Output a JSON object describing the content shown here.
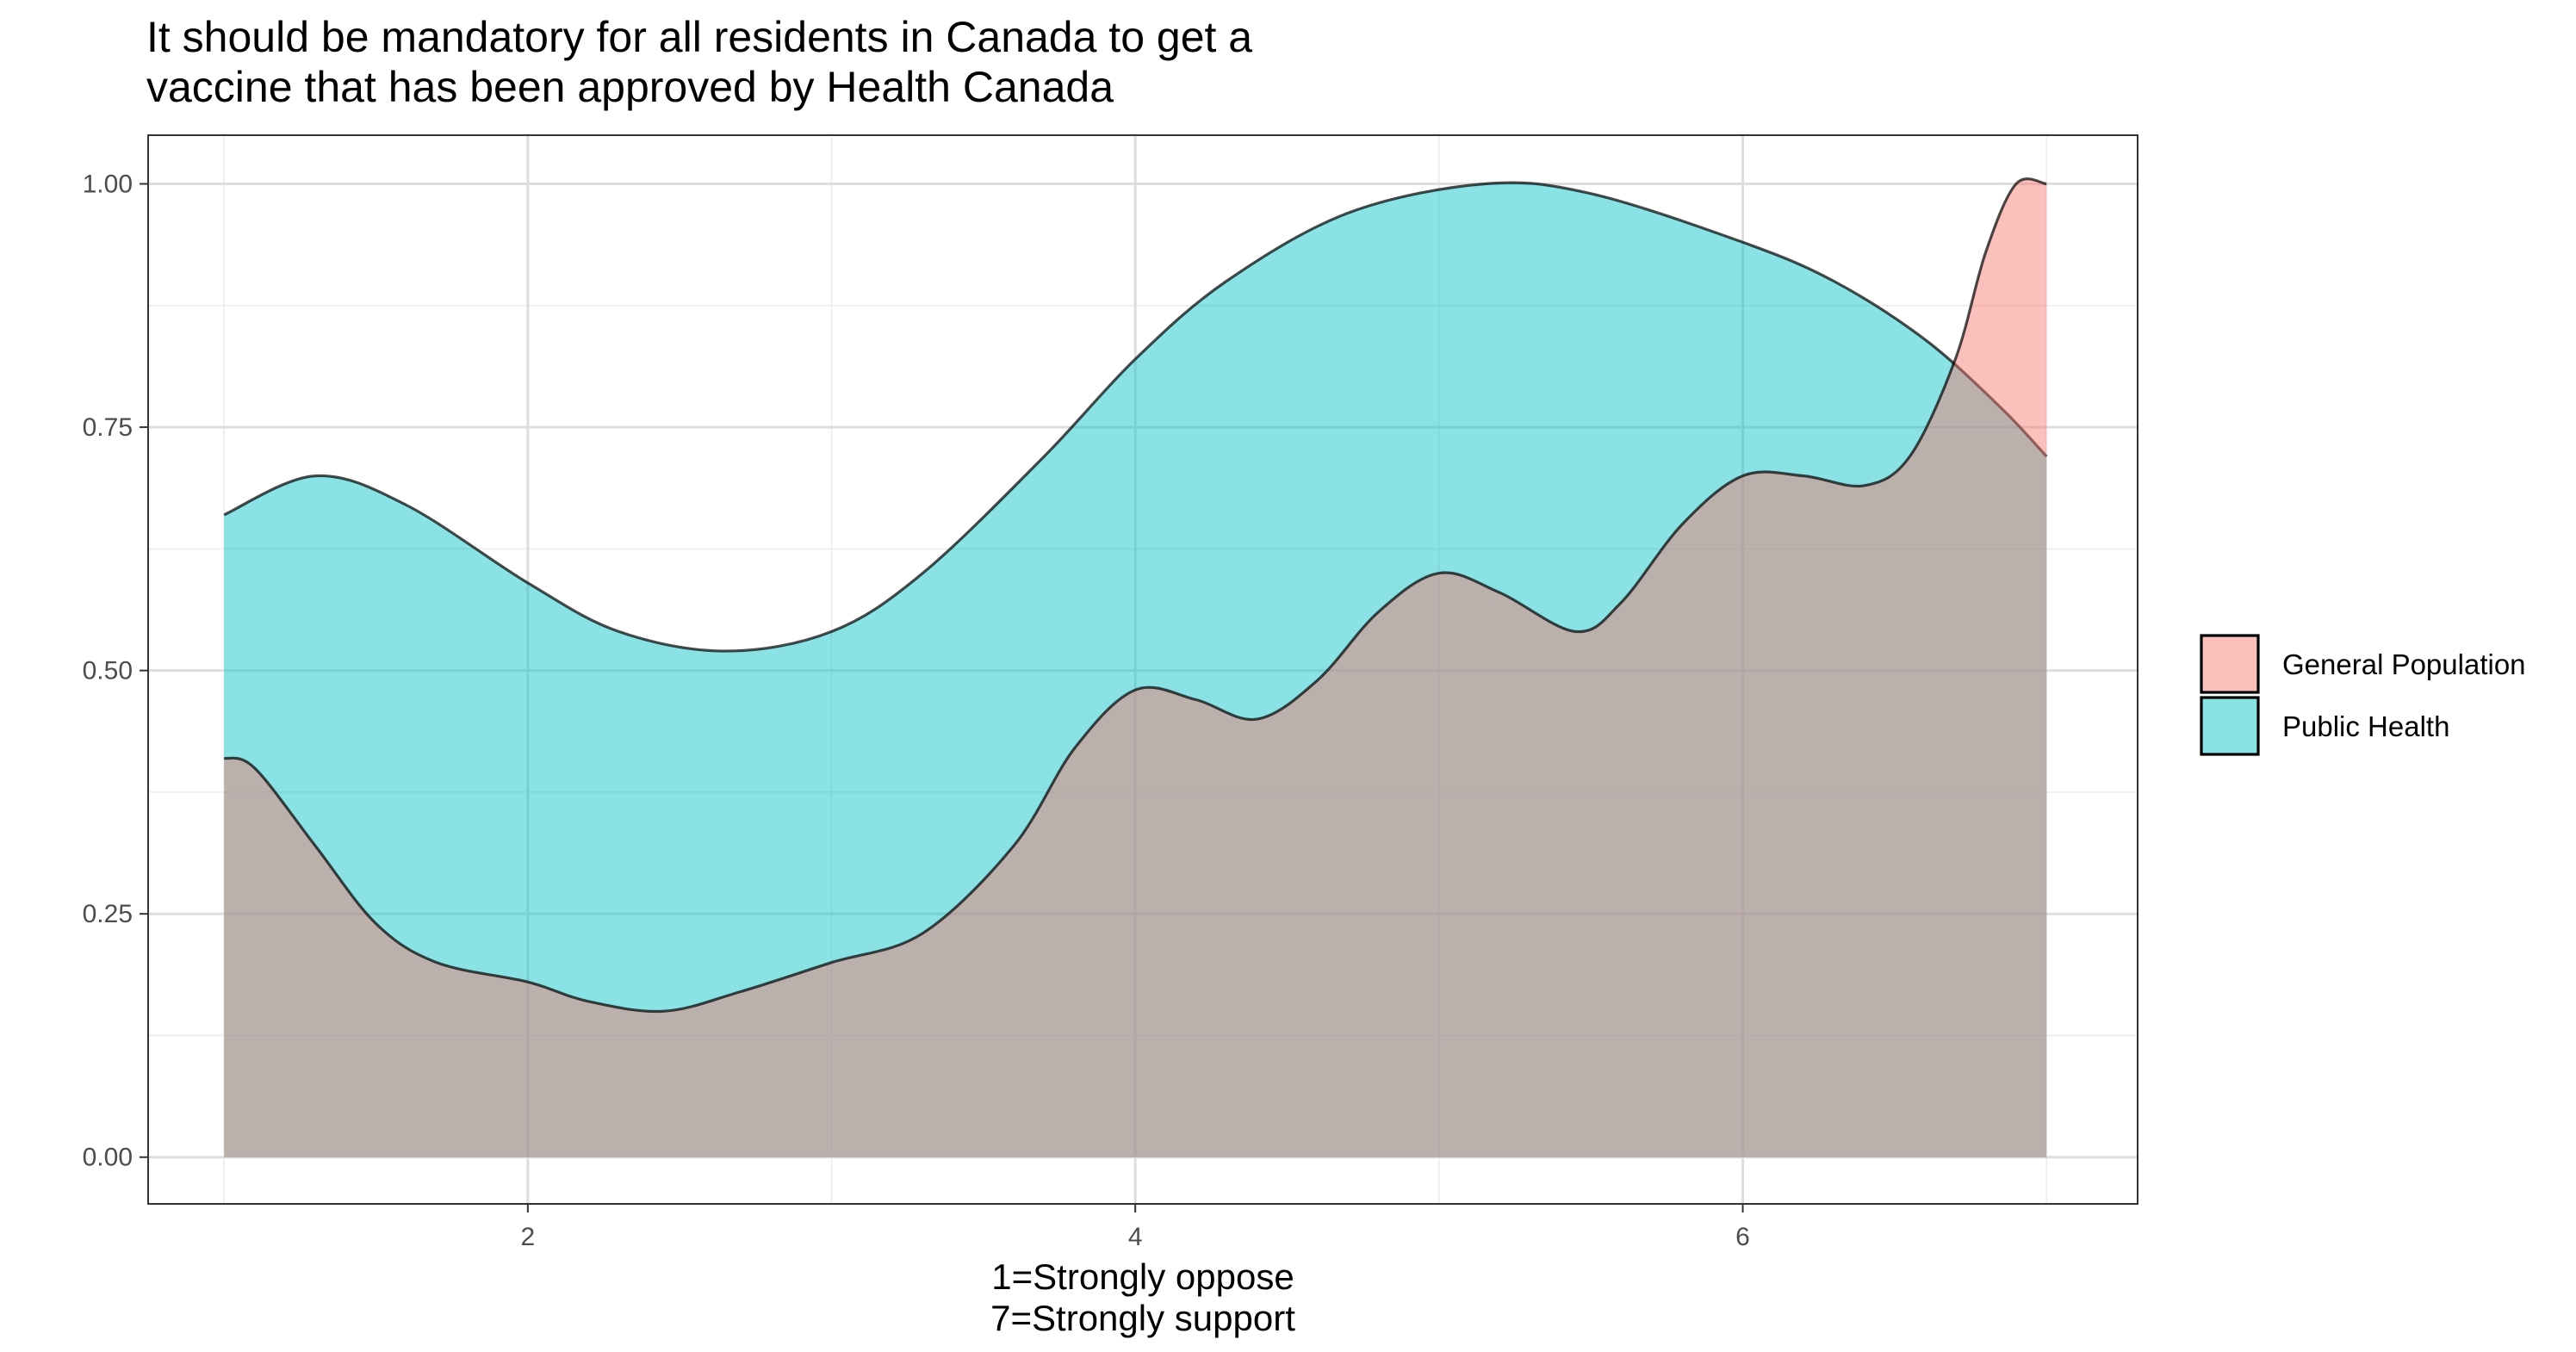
{
  "chart_data": {
    "type": "area",
    "title_lines": [
      "It should be mandatory for all residents in Canada to get a",
      "vaccine that has been approved by Health Canada"
    ],
    "xlabel_lines": [
      "1=Strongly oppose",
      "7=Strongly support"
    ],
    "ylabel": "",
    "xlim": [
      0.75,
      7.3
    ],
    "ylim": [
      -0.048,
      1.05
    ],
    "x_ticks": [
      2,
      4,
      6
    ],
    "x_tick_labels": [
      "2",
      "4",
      "6"
    ],
    "y_ticks": [
      0,
      0.25,
      0.5,
      0.75,
      1.0
    ],
    "y_tick_labels": [
      "0.00",
      "0.25",
      "0.50",
      "0.75",
      "1.00"
    ],
    "grid": true,
    "legend_position": "right",
    "series": [
      {
        "name": "General Population",
        "color": "#F8766D",
        "points": [
          [
            1.0,
            0.41
          ],
          [
            1.1,
            0.4
          ],
          [
            1.3,
            0.32
          ],
          [
            1.5,
            0.24
          ],
          [
            1.7,
            0.2
          ],
          [
            2.0,
            0.18
          ],
          [
            2.2,
            0.16
          ],
          [
            2.45,
            0.15
          ],
          [
            2.7,
            0.17
          ],
          [
            3.0,
            0.2
          ],
          [
            3.3,
            0.23
          ],
          [
            3.6,
            0.32
          ],
          [
            3.8,
            0.42
          ],
          [
            4.0,
            0.48
          ],
          [
            4.2,
            0.47
          ],
          [
            4.4,
            0.45
          ],
          [
            4.6,
            0.49
          ],
          [
            4.8,
            0.56
          ],
          [
            5.0,
            0.6
          ],
          [
            5.2,
            0.58
          ],
          [
            5.45,
            0.54
          ],
          [
            5.6,
            0.57
          ],
          [
            5.8,
            0.65
          ],
          [
            6.0,
            0.7
          ],
          [
            6.2,
            0.7
          ],
          [
            6.4,
            0.69
          ],
          [
            6.55,
            0.72
          ],
          [
            6.7,
            0.82
          ],
          [
            6.8,
            0.93
          ],
          [
            6.9,
            1.0
          ],
          [
            7.0,
            1.0
          ]
        ]
      },
      {
        "name": "Public Health",
        "color": "#00BFC4",
        "points": [
          [
            1.0,
            0.66
          ],
          [
            1.3,
            0.7
          ],
          [
            1.6,
            0.67
          ],
          [
            2.0,
            0.59
          ],
          [
            2.3,
            0.54
          ],
          [
            2.65,
            0.52
          ],
          [
            3.0,
            0.54
          ],
          [
            3.3,
            0.6
          ],
          [
            3.7,
            0.72
          ],
          [
            4.0,
            0.82
          ],
          [
            4.3,
            0.9
          ],
          [
            4.7,
            0.97
          ],
          [
            5.15,
            1.0
          ],
          [
            5.5,
            0.99
          ],
          [
            6.0,
            0.94
          ],
          [
            6.3,
            0.9
          ],
          [
            6.6,
            0.84
          ],
          [
            6.85,
            0.77
          ],
          [
            7.0,
            0.72
          ]
        ]
      }
    ]
  }
}
